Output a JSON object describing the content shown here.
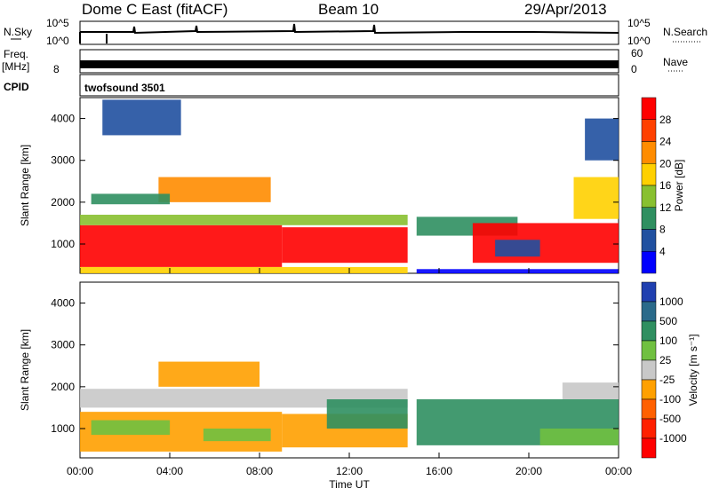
{
  "header": {
    "station": "Dome C East (fitACF)",
    "beam": "Beam 10",
    "date": "29/Apr/2013"
  },
  "status_panels": {
    "nsky_label": "N.Sky",
    "nsky_ticks": [
      "10^5",
      "10^0"
    ],
    "nsearch_label": "N.Search",
    "nsearch_ticks": [
      "10^5",
      "10^0"
    ],
    "freq_label": "Freq.",
    "freq_unit": "[MHz]",
    "freq_ticks": [
      "8"
    ],
    "nave_label": "Nave",
    "nave_ticks": [
      "60",
      "0"
    ],
    "cpid_label": "CPID",
    "cpid_value": "twofsound 3501"
  },
  "chart_data": [
    {
      "type": "heatmap",
      "name": "power",
      "ylabel": "Slant Range [km]",
      "xlabel": "Time UT",
      "xlim": [
        0,
        24
      ],
      "ylim": [
        300,
        4500
      ],
      "x_ticks": [
        "00:00",
        "04:00",
        "08:00",
        "12:00",
        "16:00",
        "20:00",
        "00:00"
      ],
      "y_ticks": [
        "1000",
        "2000",
        "3000",
        "4000"
      ],
      "colorbar": {
        "label": "Power [dB]",
        "ticks": [
          "28",
          "24",
          "20",
          "16",
          "12",
          "8",
          "4"
        ],
        "colors": [
          "#ff0000",
          "#ff4000",
          "#ff8c00",
          "#ffd000",
          "#88c030",
          "#2f8f60",
          "#2050a0",
          "#0000ff"
        ]
      },
      "patches": [
        {
          "x0": 0.0,
          "x1": 9.0,
          "y0": 450,
          "y1": 1450,
          "level": 0
        },
        {
          "x0": 9.0,
          "x1": 14.6,
          "y0": 550,
          "y1": 1400,
          "level": 0
        },
        {
          "x0": 0.0,
          "x1": 14.6,
          "y0": 1450,
          "y1": 1700,
          "level": 4
        },
        {
          "x0": 3.5,
          "x1": 8.5,
          "y0": 2000,
          "y1": 2600,
          "level": 2
        },
        {
          "x0": 0.5,
          "x1": 4.0,
          "y0": 1950,
          "y1": 2200,
          "level": 5
        },
        {
          "x0": 1.0,
          "x1": 4.5,
          "y0": 3600,
          "y1": 4450,
          "level": 6
        },
        {
          "x0": 0.0,
          "x1": 14.6,
          "y0": 300,
          "y1": 450,
          "level": 3
        },
        {
          "x0": 15.0,
          "x1": 19.5,
          "y0": 1200,
          "y1": 1650,
          "level": 5
        },
        {
          "x0": 17.5,
          "x1": 24.0,
          "y0": 550,
          "y1": 1500,
          "level": 0
        },
        {
          "x0": 18.5,
          "x1": 20.5,
          "y0": 700,
          "y1": 1100,
          "level": 6
        },
        {
          "x0": 15.0,
          "x1": 24.0,
          "y0": 300,
          "y1": 400,
          "level": 7
        },
        {
          "x0": 22.0,
          "x1": 24.0,
          "y0": 1600,
          "y1": 2600,
          "level": 3
        },
        {
          "x0": 22.5,
          "x1": 24.0,
          "y0": 3000,
          "y1": 4000,
          "level": 6
        }
      ]
    },
    {
      "type": "heatmap",
      "name": "velocity",
      "ylabel": "Slant Range [km]",
      "xlabel": "Time UT",
      "xlim": [
        0,
        24
      ],
      "ylim": [
        300,
        4500
      ],
      "x_ticks": [
        "00:00",
        "04:00",
        "08:00",
        "12:00",
        "16:00",
        "20:00",
        "00:00"
      ],
      "y_ticks": [
        "1000",
        "2000",
        "3000",
        "4000"
      ],
      "colorbar": {
        "label": "Velocity [m s⁻¹]",
        "ticks": [
          "1000",
          "500",
          "100",
          "25",
          "-25",
          "-100",
          "-500",
          "-1000"
        ],
        "colors": [
          "#2040b0",
          "#2a6a8a",
          "#2f8f60",
          "#70c040",
          "#c8c8c8",
          "#ffa000",
          "#ff6000",
          "#ff2000",
          "#ff0000"
        ]
      },
      "patches": [
        {
          "x0": 0.0,
          "x1": 14.6,
          "y0": 1500,
          "y1": 1950,
          "level": 4
        },
        {
          "x0": 0.0,
          "x1": 9.0,
          "y0": 450,
          "y1": 1400,
          "level": 5
        },
        {
          "x0": 9.0,
          "x1": 14.6,
          "y0": 550,
          "y1": 1350,
          "level": 5
        },
        {
          "x0": 0.5,
          "x1": 4.0,
          "y0": 850,
          "y1": 1200,
          "level": 3
        },
        {
          "x0": 5.5,
          "x1": 8.5,
          "y0": 700,
          "y1": 1000,
          "level": 3
        },
        {
          "x0": 3.5,
          "x1": 8.0,
          "y0": 2000,
          "y1": 2600,
          "level": 5
        },
        {
          "x0": 11.0,
          "x1": 14.6,
          "y0": 1000,
          "y1": 1700,
          "level": 2
        },
        {
          "x0": 15.0,
          "x1": 24.0,
          "y0": 600,
          "y1": 1700,
          "level": 2
        },
        {
          "x0": 20.5,
          "x1": 24.0,
          "y0": 600,
          "y1": 1000,
          "level": 3
        },
        {
          "x0": 21.5,
          "x1": 24.0,
          "y0": 1700,
          "y1": 2100,
          "level": 4
        }
      ]
    }
  ]
}
